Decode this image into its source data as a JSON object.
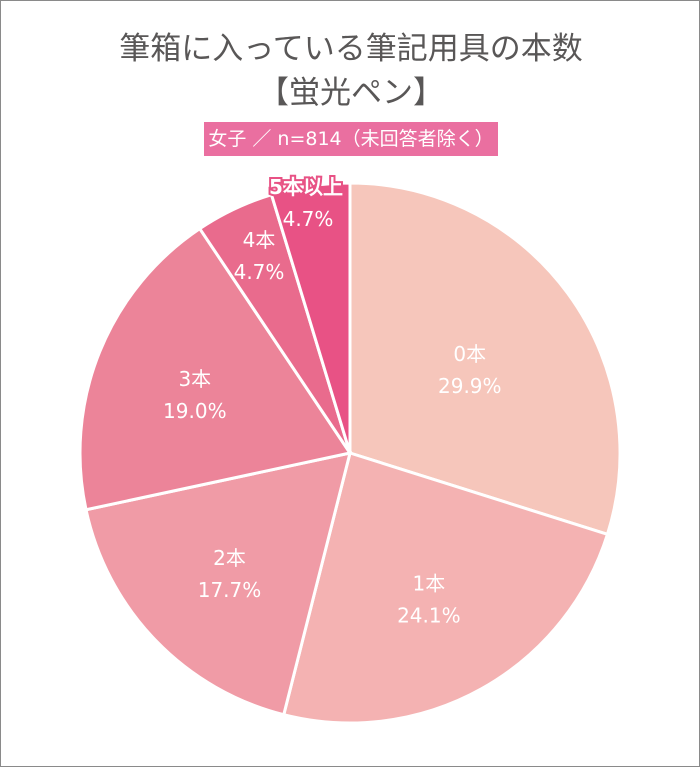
{
  "title_line1": "筆箱に入っている筆記用具の本数",
  "title_line2": "【蛍光ペン】",
  "subtitle": "女子 ／ n=814（未回答者除く）",
  "subtitle_bg": "#ea6fa0",
  "chart_data": {
    "type": "pie",
    "title": "筆箱に入っている筆記用具の本数【蛍光ペン】",
    "subtitle": "女子 ／ n=814（未回答者除く）",
    "start": "top",
    "direction": "clockwise",
    "categories": [
      "0本",
      "1本",
      "2本",
      "3本",
      "4本",
      "5本以上"
    ],
    "values": [
      29.9,
      24.1,
      17.7,
      19.0,
      4.7,
      4.7
    ],
    "labels": [
      "29.9%",
      "24.1%",
      "17.7%",
      "19.0%",
      "4.7%",
      "4.7%"
    ],
    "colors": [
      "#f6c6bb",
      "#f4b2b2",
      "#f09ba6",
      "#ec8499",
      "#e96b8d",
      "#e85285"
    ]
  }
}
